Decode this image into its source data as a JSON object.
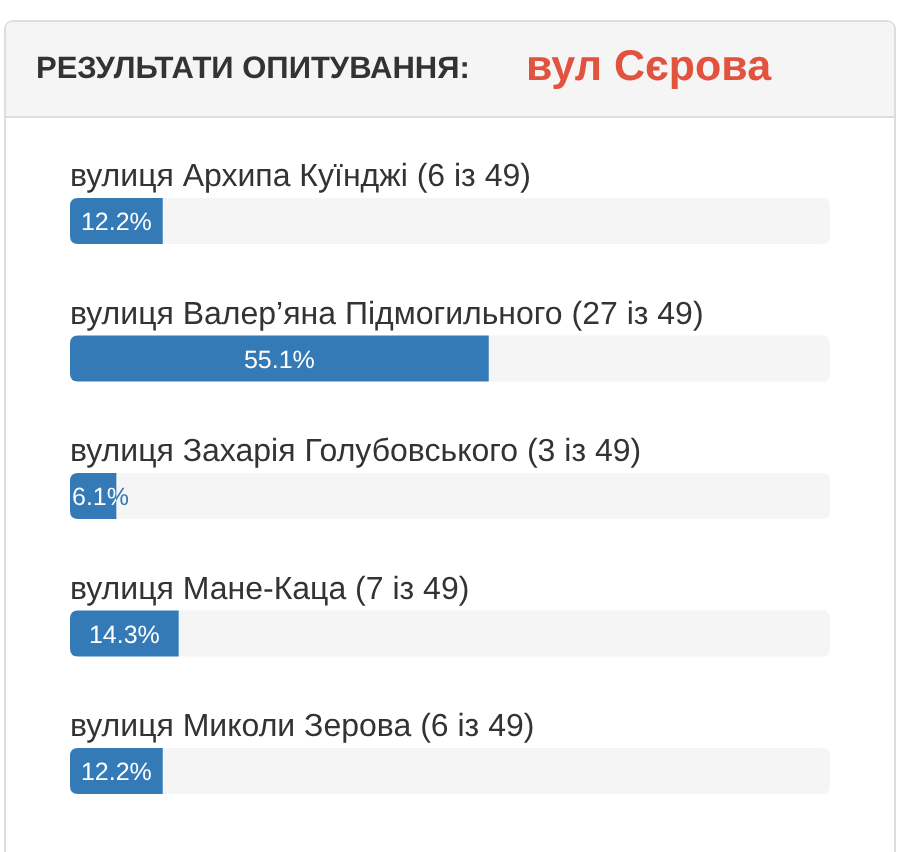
{
  "chart_data": {
    "type": "bar",
    "orientation": "horizontal",
    "title": "РЕЗУЛЬТАТИ ОПИТУВАННЯ:",
    "subtitle": "вул Сєрова",
    "categories": [
      "вулиця Архипа Куїнджі (6 із 49)",
      "вулиця Валер’яна Підмогильного (27 із 49)",
      "вулиця Захарія Голубовського (3 із 49)",
      "вулиця Мане-Каца (7 із 49)",
      "вулиця Миколи Зерова (6 із 49)"
    ],
    "values": [
      12.2,
      55.1,
      6.1,
      14.3,
      12.2
    ],
    "color": "#337ab7",
    "xlim": [
      0,
      100
    ],
    "value_labels": [
      "12.2%",
      "55.1%",
      "6.1%",
      "14.3%",
      "12.2%"
    ],
    "tick_labels": "y"
  }
}
